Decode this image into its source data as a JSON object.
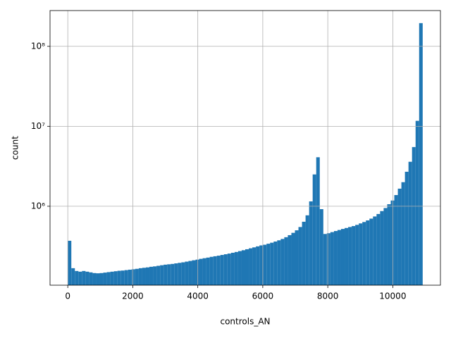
{
  "chart_data": {
    "type": "histogram",
    "xlabel": "controls_AN",
    "ylabel": "count",
    "color": "#1f77b4",
    "grid": true,
    "log_y": true,
    "bins": [
      0,
      109.2,
      218.4,
      327.6,
      436.8,
      546,
      655.2,
      764.4,
      873.6,
      982.8,
      1092,
      1201.2,
      1310.4,
      1419.6,
      1528.8,
      1638,
      1747.2,
      1856.4,
      1965.6,
      2074.8,
      2184,
      2293.2,
      2402.4,
      2511.6,
      2620.8,
      2730,
      2839.2,
      2948.4,
      3057.6,
      3166.8,
      3276,
      3385.2,
      3494.4,
      3603.6,
      3712.8,
      3822,
      3931.2,
      4040.4,
      4149.6,
      4258.8,
      4368,
      4477.2,
      4586.4,
      4695.6,
      4804.8,
      4914,
      5023.2,
      5132.4,
      5241.6,
      5350.8,
      5460,
      5569.2,
      5678.4,
      5787.6,
      5896.8,
      6006,
      6115.2,
      6224.4,
      6333.6,
      6442.8,
      6552,
      6661.2,
      6770.4,
      6879.6,
      6988.8,
      7098,
      7207.2,
      7316.4,
      7425.6,
      7534.8,
      7644,
      7753.2,
      7862.4,
      7971.6,
      8080.8,
      8190,
      8299.2,
      8408.4,
      8517.6,
      8626.8,
      8736,
      8845.2,
      8954.4,
      9063.6,
      9172.8,
      9282,
      9391.2,
      9500.4,
      9609.6,
      9718.8,
      9828,
      9937.2,
      10046.4,
      10155.6,
      10264.8,
      10374,
      10483.2,
      10592.4,
      10701.6,
      10810.8,
      10920
    ],
    "counts": [
      370000,
      168000,
      155000,
      152000,
      155000,
      152000,
      149000,
      146000,
      145000,
      146000,
      148000,
      150000,
      152000,
      154000,
      156000,
      157000,
      159000,
      161000,
      163000,
      165000,
      168000,
      170000,
      172000,
      175000,
      177000,
      180000,
      183000,
      186000,
      188000,
      190000,
      193000,
      196000,
      199000,
      203000,
      207000,
      211000,
      215000,
      220000,
      224000,
      228000,
      233000,
      237000,
      241000,
      246000,
      251000,
      256000,
      262000,
      268000,
      275000,
      282000,
      290000,
      298000,
      306000,
      315000,
      324000,
      330000,
      340000,
      350000,
      362000,
      375000,
      390000,
      410000,
      435000,
      465000,
      500000,
      550000,
      640000,
      770000,
      1150000,
      2500000,
      4100000,
      920000,
      450000,
      460000,
      475000,
      490000,
      505000,
      520000,
      535000,
      550000,
      565000,
      585000,
      610000,
      635000,
      665000,
      700000,
      745000,
      800000,
      870000,
      950000,
      1060000,
      1180000,
      1380000,
      1660000,
      2000000,
      2700000,
      3600000,
      5500000,
      11700000,
      195000000
    ],
    "xlim": [
      -546,
      11466
    ],
    "xticks": [
      0,
      2000,
      4000,
      6000,
      8000,
      10000
    ],
    "ylim": [
      103000,
      280000000
    ],
    "yticks": [
      {
        "value": 1000000,
        "label": "10⁶"
      },
      {
        "value": 10000000,
        "label": "10⁷"
      },
      {
        "value": 100000000,
        "label": "10⁸"
      }
    ]
  }
}
